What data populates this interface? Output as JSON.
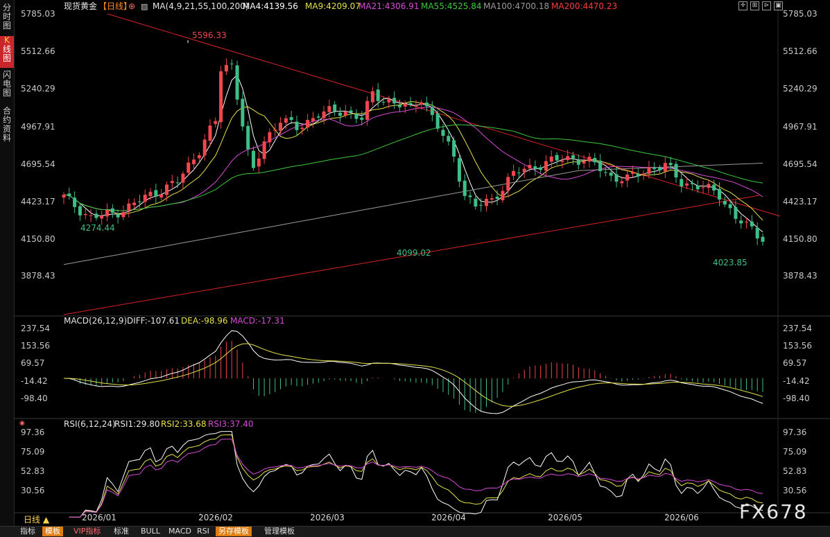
{
  "left_tabs": [
    {
      "label": "分时图"
    },
    {
      "label": "K线图",
      "active": true
    },
    {
      "label": "闪电图"
    },
    {
      "label": "合约资料"
    }
  ],
  "header": {
    "symbol": "现货黄金",
    "period": "【日线】",
    "ma_title": "MA(4,9,21,55,100,200)",
    "ma_items": [
      {
        "label": "MA4:4139.56",
        "color": "#ffffff"
      },
      {
        "label": "MA9:4209.07",
        "color": "#e6e04a"
      },
      {
        "label": "MA21:4306.91",
        "color": "#d74bd7"
      },
      {
        "label": "MA55:4525.84",
        "color": "#3ec93e"
      },
      {
        "label": "MA100:4700.18",
        "color": "#9a9a9a"
      },
      {
        "label": "MA200:4470.23",
        "color": "#ff3b3b"
      }
    ]
  },
  "price_axis": [
    "5785.03",
    "5512.66",
    "5240.29",
    "4967.91",
    "4695.54",
    "4423.17",
    "4150.80",
    "3878.43"
  ],
  "annotations": {
    "high": "5596.33",
    "low1": "4274.44",
    "low2": "4099.02",
    "low3": "4023.85"
  },
  "macd": {
    "title": "MACD(26,12,9)",
    "diff": "DIFF:-107.61",
    "dea": "DEA:-98.96",
    "macd": "MACD:-17.31",
    "axis": [
      "237.54",
      "153.56",
      "69.57",
      "-14.42",
      "-98.40"
    ]
  },
  "rsi": {
    "title": "RSI(6,12,24)",
    "rsi1": "RSI1:29.80",
    "rsi2": "RSI2:33.68",
    "rsi3": "RSI3:37.40",
    "axis": [
      "97.36",
      "75.09",
      "52.83",
      "30.56"
    ]
  },
  "x_axis": [
    "2026/01",
    "2026/02",
    "2026/03",
    "2026/04",
    "2026/05",
    "2026/06"
  ],
  "period_selector": "日线 ▲",
  "watermark": "FX678",
  "toolbar": [
    {
      "label": "指标"
    },
    {
      "label": "模板",
      "style": "y"
    },
    {
      "label": "VIP指标",
      "style": "r"
    },
    {
      "label": "标准"
    },
    {
      "label": "BULL"
    },
    {
      "label": "MACD"
    },
    {
      "label": "RSI"
    },
    {
      "label": "另存模板",
      "style": "o"
    },
    {
      "label": "管理模板"
    }
  ],
  "colors": {
    "up": "#f0464d",
    "down": "#3fbf88",
    "trend": "#d82323",
    "grid": "#262626",
    "axis_text": "#c8c8c8"
  }
}
